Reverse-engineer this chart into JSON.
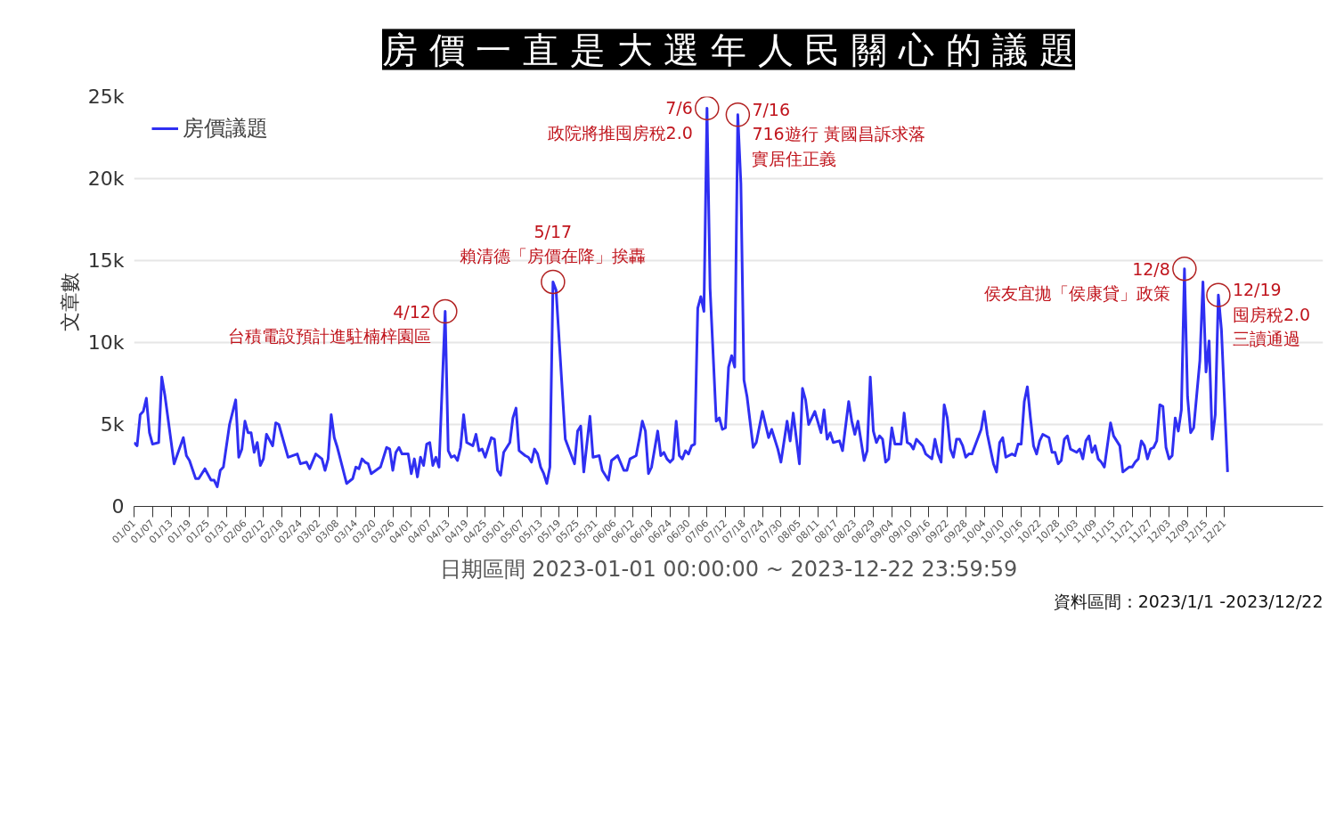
{
  "chart_data": {
    "type": "line",
    "title": "房 價 一 直 是 大 選 年 人 民 關 心 的 議 題",
    "xlabel": "日期區間 2023-01-01 00:00:00 ~ 2023-12-22 23:59:59",
    "ylabel": "文章數",
    "x": [
      "2023-01-01",
      "2023-01-02",
      "2023-01-03",
      "2023-01-04",
      "2023-01-05",
      "2023-01-06",
      "2023-01-07",
      "2023-01-09",
      "2023-01-10",
      "2023-01-11",
      "2023-01-14",
      "2023-01-17",
      "2023-01-18",
      "2023-01-19",
      "2023-01-21",
      "2023-01-22",
      "2023-01-24",
      "2023-01-26",
      "2023-01-27",
      "2023-01-28",
      "2023-01-29",
      "2023-01-30",
      "2023-02-01",
      "2023-02-03",
      "2023-02-04",
      "2023-02-05",
      "2023-02-06",
      "2023-02-07",
      "2023-02-08",
      "2023-02-09",
      "2023-02-10",
      "2023-02-11",
      "2023-02-12",
      "2023-02-13",
      "2023-02-15",
      "2023-02-16",
      "2023-02-17",
      "2023-02-20",
      "2023-02-23",
      "2023-02-24",
      "2023-02-26",
      "2023-02-27",
      "2023-03-01",
      "2023-03-03",
      "2023-03-04",
      "2023-03-05",
      "2023-03-06",
      "2023-03-07",
      "2023-03-08",
      "2023-03-11",
      "2023-03-13",
      "2023-03-14",
      "2023-03-15",
      "2023-03-16",
      "2023-03-17",
      "2023-03-18",
      "2023-03-19",
      "2023-03-22",
      "2023-03-24",
      "2023-03-25",
      "2023-03-26",
      "2023-03-27",
      "2023-03-28",
      "2023-03-29",
      "2023-03-31",
      "2023-04-01",
      "2023-04-02",
      "2023-04-03",
      "2023-04-04",
      "2023-04-05",
      "2023-04-06",
      "2023-04-07",
      "2023-04-08",
      "2023-04-09",
      "2023-04-10",
      "2023-04-12",
      "2023-04-13",
      "2023-04-14",
      "2023-04-15",
      "2023-04-16",
      "2023-04-17",
      "2023-04-18",
      "2023-04-19",
      "2023-04-21",
      "2023-04-22",
      "2023-04-23",
      "2023-04-24",
      "2023-04-25",
      "2023-04-27",
      "2023-04-28",
      "2023-04-29",
      "2023-04-30",
      "2023-05-01",
      "2023-05-03",
      "2023-05-04",
      "2023-05-05",
      "2023-05-06",
      "2023-05-08",
      "2023-05-09",
      "2023-05-10",
      "2023-05-11",
      "2023-05-12",
      "2023-05-13",
      "2023-05-14",
      "2023-05-15",
      "2023-05-16",
      "2023-05-17",
      "2023-05-18",
      "2023-05-21",
      "2023-05-22",
      "2023-05-24",
      "2023-05-25",
      "2023-05-26",
      "2023-05-27",
      "2023-05-29",
      "2023-05-30",
      "2023-06-01",
      "2023-06-02",
      "2023-06-04",
      "2023-06-05",
      "2023-06-07",
      "2023-06-09",
      "2023-06-10",
      "2023-06-11",
      "2023-06-13",
      "2023-06-14",
      "2023-06-15",
      "2023-06-16",
      "2023-06-17",
      "2023-06-18",
      "2023-06-20",
      "2023-06-21",
      "2023-06-22",
      "2023-06-23",
      "2023-06-24",
      "2023-06-25",
      "2023-06-26",
      "2023-06-27",
      "2023-06-28",
      "2023-06-29",
      "2023-06-30",
      "2023-07-01",
      "2023-07-02",
      "2023-07-03",
      "2023-07-04",
      "2023-07-05",
      "2023-07-06",
      "2023-07-07",
      "2023-07-09",
      "2023-07-10",
      "2023-07-11",
      "2023-07-12",
      "2023-07-13",
      "2023-07-14",
      "2023-07-15",
      "2023-07-16",
      "2023-07-17",
      "2023-07-18",
      "2023-07-19",
      "2023-07-21",
      "2023-07-22",
      "2023-07-24",
      "2023-07-26",
      "2023-07-27",
      "2023-07-29",
      "2023-07-30",
      "2023-08-01",
      "2023-08-02",
      "2023-08-03",
      "2023-08-05",
      "2023-08-06",
      "2023-08-07",
      "2023-08-08",
      "2023-08-10",
      "2023-08-12",
      "2023-08-13",
      "2023-08-14",
      "2023-08-15",
      "2023-08-16",
      "2023-08-18",
      "2023-08-19",
      "2023-08-21",
      "2023-08-22",
      "2023-08-23",
      "2023-08-24",
      "2023-08-26",
      "2023-08-27",
      "2023-08-28",
      "2023-08-29",
      "2023-08-30",
      "2023-08-31",
      "2023-09-01",
      "2023-09-02",
      "2023-09-03",
      "2023-09-04",
      "2023-09-05",
      "2023-09-07",
      "2023-09-08",
      "2023-09-09",
      "2023-09-10",
      "2023-09-11",
      "2023-09-12",
      "2023-09-14",
      "2023-09-15",
      "2023-09-17",
      "2023-09-18",
      "2023-09-19",
      "2023-09-20",
      "2023-09-21",
      "2023-09-22",
      "2023-09-23",
      "2023-09-24",
      "2023-09-25",
      "2023-09-26",
      "2023-09-27",
      "2023-09-28",
      "2023-09-29",
      "2023-09-30",
      "2023-10-02",
      "2023-10-03",
      "2023-10-04",
      "2023-10-05",
      "2023-10-06",
      "2023-10-07",
      "2023-10-08",
      "2023-10-09",
      "2023-10-10",
      "2023-10-11",
      "2023-10-13",
      "2023-10-14",
      "2023-10-15",
      "2023-10-16",
      "2023-10-17",
      "2023-10-18",
      "2023-10-19",
      "2023-10-20",
      "2023-10-21",
      "2023-10-22",
      "2023-10-23",
      "2023-10-25",
      "2023-10-26",
      "2023-10-27",
      "2023-10-28",
      "2023-10-29",
      "2023-10-30",
      "2023-10-31",
      "2023-11-01",
      "2023-11-03",
      "2023-11-04",
      "2023-11-05",
      "2023-11-06",
      "2023-11-07",
      "2023-11-08",
      "2023-11-09",
      "2023-11-10",
      "2023-11-11",
      "2023-11-12",
      "2023-11-14",
      "2023-11-15",
      "2023-11-17",
      "2023-11-18",
      "2023-11-20",
      "2023-11-21",
      "2023-11-22",
      "2023-11-23",
      "2023-11-24",
      "2023-11-25",
      "2023-11-26",
      "2023-11-27",
      "2023-11-28",
      "2023-11-29",
      "2023-11-30",
      "2023-12-01",
      "2023-12-02",
      "2023-12-03",
      "2023-12-04",
      "2023-12-05",
      "2023-12-06",
      "2023-12-07",
      "2023-12-08",
      "2023-12-09",
      "2023-12-10",
      "2023-12-11",
      "2023-12-13",
      "2023-12-14",
      "2023-12-15",
      "2023-12-16",
      "2023-12-17",
      "2023-12-18",
      "2023-12-19",
      "2023-12-20",
      "2023-12-22"
    ],
    "series": [
      {
        "name": "房價議題",
        "color": "#2f2ff2",
        "values": [
          3.9,
          3.7,
          5.6,
          5.8,
          6.6,
          4.5,
          3.8,
          3.9,
          7.9,
          6.8,
          2.6,
          4.2,
          3.1,
          2.8,
          1.7,
          1.7,
          2.3,
          1.6,
          1.6,
          1.2,
          2.2,
          2.4,
          5.0,
          6.5,
          3.0,
          3.5,
          5.2,
          4.5,
          4.5,
          3.3,
          3.9,
          2.5,
          2.9,
          4.4,
          3.7,
          5.1,
          5.0,
          3.0,
          3.2,
          2.6,
          2.7,
          2.3,
          3.2,
          2.9,
          2.2,
          2.9,
          5.6,
          4.2,
          3.6,
          1.4,
          1.7,
          2.4,
          2.3,
          2.9,
          2.7,
          2.6,
          2.0,
          2.4,
          3.6,
          3.5,
          2.2,
          3.3,
          3.6,
          3.2,
          3.2,
          2.0,
          2.9,
          1.8,
          3.0,
          2.5,
          3.8,
          3.9,
          2.5,
          3.0,
          2.4,
          11.9,
          3.4,
          3.0,
          3.1,
          2.8,
          3.6,
          5.6,
          3.9,
          3.7,
          4.4,
          3.4,
          3.5,
          3.0,
          4.2,
          4.1,
          2.2,
          1.9,
          3.3,
          3.9,
          5.4,
          6.0,
          3.4,
          3.1,
          3.0,
          2.7,
          3.5,
          3.2,
          2.4,
          2.0,
          1.4,
          2.4,
          13.7,
          13.2,
          4.1,
          3.6,
          2.6,
          4.6,
          4.9,
          2.1,
          5.5,
          3.0,
          3.1,
          2.2,
          1.6,
          2.8,
          3.1,
          2.2,
          2.2,
          2.9,
          3.1,
          4.1,
          5.2,
          4.6,
          2.0,
          2.4,
          4.6,
          3.1,
          3.3,
          2.9,
          2.7,
          2.9,
          5.2,
          3.1,
          2.9,
          3.4,
          3.2,
          3.7,
          3.8,
          12.1,
          12.8,
          11.9,
          24.3,
          13.3,
          5.2,
          5.4,
          4.7,
          4.8,
          8.5,
          9.2,
          8.5,
          23.9,
          19.7,
          7.7,
          6.7,
          3.6,
          3.9,
          5.8,
          4.2,
          4.7,
          3.5,
          2.7,
          5.2,
          4.0,
          5.7,
          2.6,
          7.2,
          6.5,
          5.0,
          5.8,
          4.5,
          5.9,
          4.1,
          4.5,
          3.9,
          4.0,
          3.4,
          6.4,
          5.2,
          4.4,
          5.2,
          2.8,
          3.4,
          7.9,
          4.6,
          3.9,
          4.3,
          4.1,
          2.7,
          2.9,
          4.8,
          3.8,
          3.8,
          5.7,
          3.9,
          3.8,
          3.5,
          4.1,
          3.7,
          3.2,
          2.9,
          4.1,
          3.2,
          2.7,
          6.2,
          5.4,
          3.5,
          3.0,
          4.1,
          4.1,
          3.7,
          3.0,
          3.2,
          3.2,
          4.2,
          4.7,
          5.8,
          4.4,
          3.5,
          2.6,
          2.1,
          3.9,
          4.2,
          3.0,
          3.2,
          3.1,
          3.8,
          3.8,
          6.4,
          7.3,
          5.4,
          3.7,
          3.2,
          4.0,
          4.4,
          4.2,
          3.3,
          3.3,
          2.6,
          2.8,
          4.1,
          4.3,
          3.5,
          3.3,
          3.5,
          2.9,
          4.0,
          4.3,
          3.3,
          3.7,
          2.9,
          2.7,
          2.4,
          5.1,
          4.3,
          3.7,
          2.1,
          2.4,
          2.4,
          2.7,
          2.9,
          4.0,
          3.7,
          2.9,
          3.5,
          3.6,
          4.0,
          6.2,
          6.1,
          3.6,
          2.9,
          3.1,
          5.4,
          4.6,
          5.9,
          14.5,
          6.7,
          4.5,
          4.8,
          8.9,
          13.7,
          8.2,
          10.1,
          4.1,
          5.6,
          12.9,
          10.8,
          2.1
        ]
      }
    ],
    "xlim": [
      "2023-01-01",
      "2024-01-22"
    ],
    "xticks": [
      {
        "value": "2023-01-01",
        "label": "01/01"
      },
      {
        "value": "2023-01-07",
        "label": "01/07"
      },
      {
        "value": "2023-01-13",
        "label": "01/13"
      },
      {
        "value": "2023-01-19",
        "label": "01/19"
      },
      {
        "value": "2023-01-25",
        "label": "01/25"
      },
      {
        "value": "2023-01-31",
        "label": "01/31"
      },
      {
        "value": "2023-02-06",
        "label": "02/06"
      },
      {
        "value": "2023-02-12",
        "label": "02/12"
      },
      {
        "value": "2023-02-18",
        "label": "02/18"
      },
      {
        "value": "2023-02-24",
        "label": "02/24"
      },
      {
        "value": "2023-03-02",
        "label": "03/02"
      },
      {
        "value": "2023-03-08",
        "label": "03/08"
      },
      {
        "value": "2023-03-14",
        "label": "03/14"
      },
      {
        "value": "2023-03-20",
        "label": "03/20"
      },
      {
        "value": "2023-03-26",
        "label": "03/26"
      },
      {
        "value": "2023-04-01",
        "label": "04/01"
      },
      {
        "value": "2023-04-07",
        "label": "04/07"
      },
      {
        "value": "2023-04-13",
        "label": "04/13"
      },
      {
        "value": "2023-04-19",
        "label": "04/19"
      },
      {
        "value": "2023-04-25",
        "label": "04/25"
      },
      {
        "value": "2023-05-01",
        "label": "05/01"
      },
      {
        "value": "2023-05-07",
        "label": "05/07"
      },
      {
        "value": "2023-05-13",
        "label": "05/13"
      },
      {
        "value": "2023-05-19",
        "label": "05/19"
      },
      {
        "value": "2023-05-25",
        "label": "05/25"
      },
      {
        "value": "2023-05-31",
        "label": "05/31"
      },
      {
        "value": "2023-06-06",
        "label": "06/06"
      },
      {
        "value": "2023-06-12",
        "label": "06/12"
      },
      {
        "value": "2023-06-18",
        "label": "06/18"
      },
      {
        "value": "2023-06-24",
        "label": "06/24"
      },
      {
        "value": "2023-06-30",
        "label": "06/30"
      },
      {
        "value": "2023-07-06",
        "label": "07/06"
      },
      {
        "value": "2023-07-12",
        "label": "07/12"
      },
      {
        "value": "2023-07-18",
        "label": "07/18"
      },
      {
        "value": "2023-07-24",
        "label": "07/24"
      },
      {
        "value": "2023-07-30",
        "label": "07/30"
      },
      {
        "value": "2023-08-05",
        "label": "08/05"
      },
      {
        "value": "2023-08-11",
        "label": "08/11"
      },
      {
        "value": "2023-08-17",
        "label": "08/17"
      },
      {
        "value": "2023-08-23",
        "label": "08/23"
      },
      {
        "value": "2023-08-29",
        "label": "08/29"
      },
      {
        "value": "2023-09-04",
        "label": "09/04"
      },
      {
        "value": "2023-09-10",
        "label": "09/10"
      },
      {
        "value": "2023-09-16",
        "label": "09/16"
      },
      {
        "value": "2023-09-22",
        "label": "09/22"
      },
      {
        "value": "2023-09-28",
        "label": "09/28"
      },
      {
        "value": "2023-10-04",
        "label": "10/04"
      },
      {
        "value": "2023-10-10",
        "label": "10/10"
      },
      {
        "value": "2023-10-16",
        "label": "10/16"
      },
      {
        "value": "2023-10-22",
        "label": "10/22"
      },
      {
        "value": "2023-10-28",
        "label": "10/28"
      },
      {
        "value": "2023-11-03",
        "label": "11/03"
      },
      {
        "value": "2023-11-09",
        "label": "11/09"
      },
      {
        "value": "2023-11-15",
        "label": "11/15"
      },
      {
        "value": "2023-11-21",
        "label": "11/21"
      },
      {
        "value": "2023-11-27",
        "label": "11/27"
      },
      {
        "value": "2023-12-03",
        "label": "12/03"
      },
      {
        "value": "2023-12-09",
        "label": "12/09"
      },
      {
        "value": "2023-12-15",
        "label": "12/15"
      },
      {
        "value": "2023-12-21",
        "label": "12/21"
      }
    ],
    "ylim": [
      0,
      25
    ],
    "yticks": [
      0,
      {
        "value": 5,
        "label": "5k"
      },
      {
        "value": 10,
        "label": "10k"
      },
      {
        "value": 15,
        "label": "15k"
      },
      {
        "value": 20,
        "label": "20k"
      },
      {
        "value": 25,
        "label": "25k"
      }
    ],
    "grid": "y",
    "legend": "top left",
    "marker": "none",
    "line_style": "solid",
    "annotations": [
      {
        "text": "4/12\n台積電設預計進駐楠梓園區",
        "x": "2023-04-12",
        "y": 11.9
      },
      {
        "text": "5/17\n賴清德「房價在降」挨轟",
        "x": "2023-05-17",
        "y": 13.7
      },
      {
        "text": "7/6\n政院將推囤房稅2.0",
        "x": "2023-07-06",
        "y": 24.3
      },
      {
        "text": "7/16\n716遊行 黃國昌訴求落實居住正義",
        "x": "2023-07-16",
        "y": 23.9
      },
      {
        "text": "12/8\n侯友宜拋「侯康貸」政策",
        "x": "2023-12-08",
        "y": 14.5
      },
      {
        "text": "12/19\n囤房稅2.0三讀通過",
        "x": "2023-12-19",
        "y": 12.9
      },
      "資料區間：2023/1/1 -2023/12/22"
    ]
  }
}
